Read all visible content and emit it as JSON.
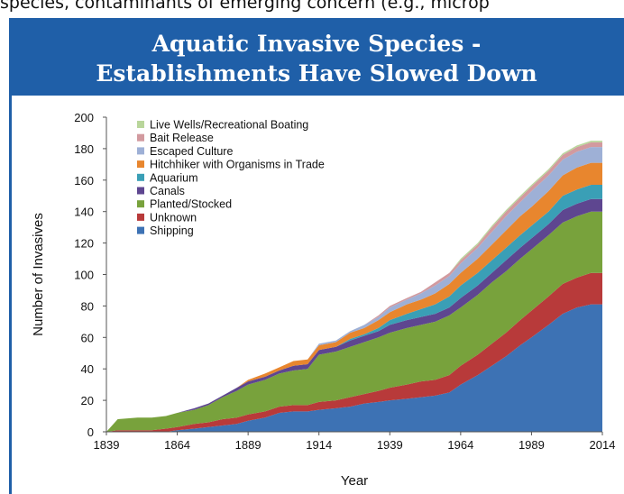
{
  "header": {
    "top_text": "species, contaminants of emerging concern (e.g., microp",
    "title_line1": "Aquatic Invasive Species -",
    "title_line2": "Establishments Have Slowed Down"
  },
  "chart_data": {
    "type": "area",
    "stacked": true,
    "title": "Aquatic Invasive Species - Establishments Have Slowed Down",
    "xlabel": "Year",
    "ylabel": "Number of Invasives",
    "xlim": [
      1839,
      2014
    ],
    "ylim": [
      0,
      200
    ],
    "yticks": [
      0,
      20,
      40,
      60,
      80,
      100,
      120,
      140,
      160,
      180,
      200
    ],
    "xticks": [
      1839,
      1864,
      1889,
      1914,
      1939,
      1964,
      1989,
      2014
    ],
    "grid": false,
    "legend_position": "top-left",
    "x": [
      1839,
      1843,
      1850,
      1855,
      1860,
      1864,
      1870,
      1875,
      1880,
      1885,
      1889,
      1895,
      1900,
      1905,
      1910,
      1914,
      1920,
      1925,
      1930,
      1935,
      1939,
      1945,
      1950,
      1955,
      1960,
      1964,
      1970,
      1975,
      1980,
      1985,
      1989,
      1995,
      2000,
      2005,
      2010,
      2014
    ],
    "series": [
      {
        "name": "Shipping",
        "color": "#3d72b4",
        "values": [
          0,
          0,
          0,
          0,
          0,
          1,
          2,
          3,
          4,
          5,
          7,
          9,
          12,
          13,
          13,
          14,
          15,
          16,
          18,
          19,
          20,
          21,
          22,
          23,
          25,
          30,
          36,
          42,
          48,
          55,
          60,
          68,
          75,
          79,
          81,
          81
        ]
      },
      {
        "name": "Unknown",
        "color": "#b83a3a",
        "values": [
          0,
          1,
          1,
          1,
          2,
          2,
          3,
          3,
          4,
          4,
          4,
          4,
          4,
          4,
          4,
          5,
          5,
          6,
          6,
          7,
          8,
          9,
          10,
          10,
          11,
          12,
          13,
          14,
          15,
          16,
          17,
          18,
          19,
          19,
          20,
          20
        ]
      },
      {
        "name": "Planted/Stocked",
        "color": "#78a23c",
        "values": [
          0,
          7,
          8,
          8,
          8,
          9,
          9,
          11,
          14,
          17,
          19,
          20,
          21,
          22,
          23,
          30,
          31,
          32,
          33,
          34,
          35,
          36,
          36,
          37,
          38,
          37,
          38,
          39,
          39,
          39,
          39,
          39,
          39,
          39,
          39,
          39
        ]
      },
      {
        "name": "Canals",
        "color": "#5e4690",
        "values": [
          0,
          0,
          0,
          0,
          0,
          0,
          1,
          1,
          1,
          2,
          2,
          2,
          2,
          3,
          3,
          3,
          3,
          4,
          4,
          4,
          5,
          5,
          5,
          5,
          5,
          6,
          6,
          6,
          7,
          7,
          7,
          7,
          8,
          8,
          8,
          8
        ]
      },
      {
        "name": "Aquarium",
        "color": "#3a9fb6",
        "values": [
          0,
          0,
          0,
          0,
          0,
          0,
          0,
          0,
          0,
          0,
          0,
          0,
          0,
          0,
          0,
          0,
          0,
          1,
          1,
          2,
          3,
          4,
          5,
          6,
          7,
          8,
          8,
          8,
          8,
          8,
          8,
          8,
          9,
          9,
          9,
          9
        ]
      },
      {
        "name": "Hitchhiker with Organisms in Trade",
        "color": "#e8862e",
        "values": [
          0,
          0,
          0,
          0,
          0,
          0,
          0,
          0,
          0,
          0,
          1,
          2,
          2,
          3,
          3,
          3,
          3,
          4,
          4,
          5,
          5,
          6,
          6,
          7,
          8,
          8,
          9,
          10,
          11,
          12,
          12,
          13,
          13,
          14,
          14,
          14
        ]
      },
      {
        "name": "Escaped Culture",
        "color": "#9eb0d6",
        "values": [
          0,
          0,
          0,
          0,
          0,
          0,
          0,
          0,
          0,
          0,
          0,
          0,
          0,
          0,
          0,
          1,
          1,
          1,
          2,
          2,
          3,
          3,
          4,
          5,
          5,
          6,
          7,
          8,
          9,
          9,
          10,
          10,
          10,
          10,
          10,
          10
        ]
      },
      {
        "name": "Bait Release",
        "color": "#d29a9f",
        "values": [
          0,
          0,
          0,
          0,
          0,
          0,
          0,
          0,
          0,
          0,
          0,
          0,
          0,
          0,
          0,
          0,
          0,
          0,
          0,
          1,
          1,
          1,
          1,
          2,
          2,
          2,
          2,
          3,
          3,
          3,
          3,
          3,
          3,
          3,
          3,
          3
        ]
      },
      {
        "name": "Live Wells/Recreational Boating",
        "color": "#b9d69b",
        "values": [
          0,
          0,
          0,
          0,
          0,
          0,
          0,
          0,
          0,
          0,
          0,
          0,
          0,
          0,
          0,
          0,
          0,
          0,
          0,
          0,
          0,
          0,
          0,
          0,
          0,
          1,
          1,
          1,
          1,
          1,
          1,
          1,
          1,
          1,
          1,
          1
        ]
      }
    ],
    "legend_order": [
      "Live Wells/Recreational Boating",
      "Bait Release",
      "Escaped Culture",
      "Hitchhiker with Organisms in Trade",
      "Aquarium",
      "Canals",
      "Planted/Stocked",
      "Unknown",
      "Shipping"
    ]
  }
}
